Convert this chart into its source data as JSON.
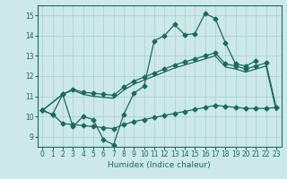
{
  "xlabel": "Humidex (Indice chaleur)",
  "background_color": "#cce8e8",
  "grid_color": "#aacfcf",
  "line_color": "#1a6b5a",
  "xlim": [
    -0.5,
    23.5
  ],
  "ylim": [
    8.5,
    15.5
  ],
  "yticks": [
    9,
    10,
    11,
    12,
    13,
    14,
    15
  ],
  "xticks": [
    0,
    1,
    2,
    3,
    4,
    5,
    6,
    7,
    8,
    9,
    10,
    11,
    12,
    13,
    14,
    15,
    16,
    17,
    18,
    19,
    20,
    21,
    22,
    23
  ],
  "line_main_x": [
    0,
    1,
    2,
    3,
    4,
    5,
    6,
    7,
    8,
    9,
    10,
    11,
    12,
    13,
    14,
    15,
    16,
    17,
    18,
    19,
    20,
    21,
    22,
    23
  ],
  "line_main_y": [
    10.3,
    10.1,
    11.1,
    9.5,
    10.0,
    9.85,
    8.85,
    8.6,
    10.1,
    11.15,
    11.5,
    13.75,
    14.0,
    14.55,
    14.05,
    14.1,
    15.1,
    14.85,
    13.65,
    12.6,
    12.5,
    12.75,
    null,
    null
  ],
  "line_upper_x": [
    0,
    2,
    3,
    4,
    5,
    6,
    7,
    8,
    9,
    10,
    11,
    12,
    13,
    14,
    15,
    16,
    17,
    18,
    19,
    20,
    21,
    22,
    23
  ],
  "line_upper_y": [
    10.3,
    11.1,
    11.35,
    11.2,
    11.15,
    11.1,
    11.05,
    11.45,
    11.75,
    11.95,
    12.15,
    12.35,
    12.55,
    12.7,
    12.85,
    13.0,
    13.15,
    12.6,
    12.5,
    12.35,
    12.5,
    12.65,
    10.45
  ],
  "line_mid_x": [
    0,
    2,
    3,
    4,
    5,
    6,
    7,
    8,
    9,
    10,
    11,
    12,
    13,
    14,
    15,
    16,
    17,
    18,
    19,
    20,
    21,
    22,
    23
  ],
  "line_mid_y": [
    10.3,
    11.1,
    11.3,
    11.1,
    11.0,
    10.95,
    10.9,
    11.3,
    11.6,
    11.8,
    12.0,
    12.2,
    12.4,
    12.55,
    12.7,
    12.85,
    13.0,
    12.45,
    12.35,
    12.2,
    12.35,
    12.5,
    10.3
  ],
  "line_lower_x": [
    0,
    1,
    2,
    3,
    4,
    5,
    6,
    7,
    8,
    9,
    10,
    11,
    12,
    13,
    14,
    15,
    16,
    17,
    18,
    19,
    20,
    21,
    22,
    23
  ],
  "line_lower_y": [
    10.3,
    10.1,
    9.65,
    9.6,
    9.55,
    9.5,
    9.45,
    9.4,
    9.6,
    9.75,
    9.85,
    9.95,
    10.05,
    10.15,
    10.25,
    10.35,
    10.45,
    10.55,
    10.5,
    10.45,
    10.4,
    10.4,
    10.4,
    10.45
  ]
}
